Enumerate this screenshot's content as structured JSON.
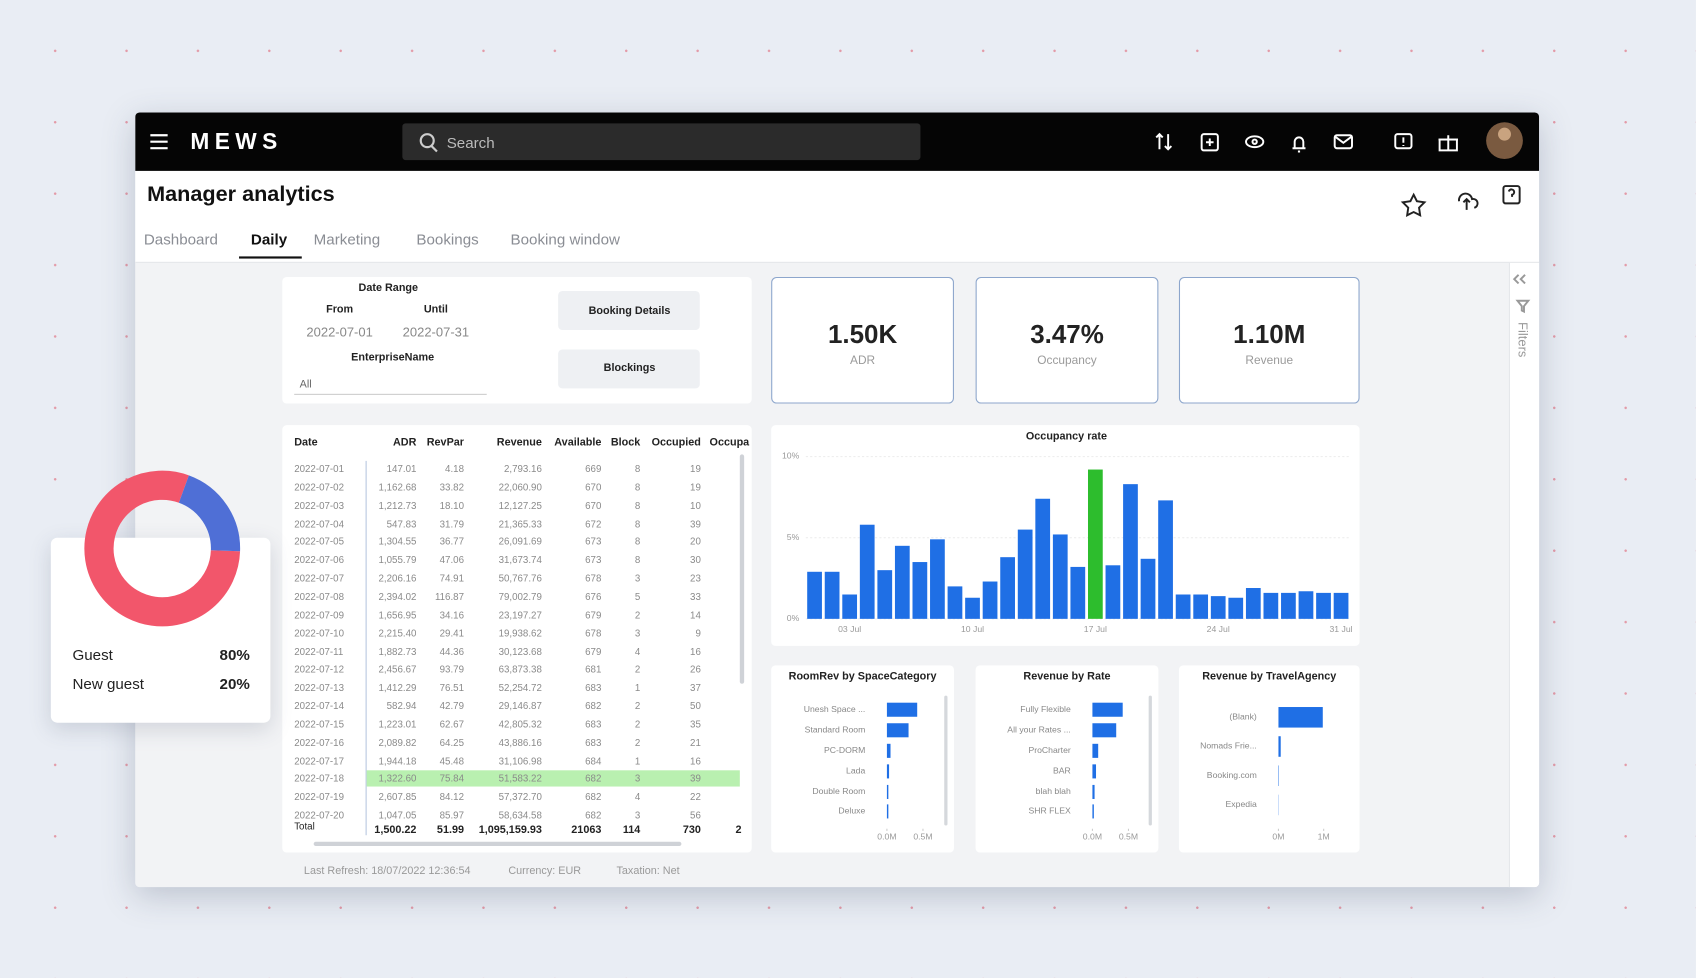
{
  "nav": {
    "brand": "MEWS",
    "search_placeholder": "Search"
  },
  "page": {
    "title": "Manager analytics",
    "tabs": [
      "Dashboard",
      "Daily",
      "Marketing",
      "Bookings",
      "Booking window"
    ],
    "active_tab": 1,
    "filters_label": "Filters"
  },
  "filters": {
    "date_range_label": "Date Range",
    "from_label": "From",
    "until_label": "Until",
    "from": "2022-07-01",
    "until": "2022-07-31",
    "enterprise_label": "EnterpriseName",
    "enterprise_value": "All",
    "buttons": [
      "Booking Details",
      "Blockings"
    ]
  },
  "kpis": [
    {
      "value": "1.50K",
      "label": "ADR"
    },
    {
      "value": "3.47%",
      "label": "Occupancy"
    },
    {
      "value": "1.10M",
      "label": "Revenue"
    }
  ],
  "table": {
    "columns": [
      "Date",
      "ADR",
      "RevPar",
      "Revenue",
      "Available",
      "Block",
      "Occupied",
      "Occupa"
    ],
    "rows": [
      [
        "2022-07-01",
        "147.01",
        "4.18",
        "2,793.16",
        "669",
        "8",
        "19"
      ],
      [
        "2022-07-02",
        "1,162.68",
        "33.82",
        "22,060.90",
        "670",
        "8",
        "19"
      ],
      [
        "2022-07-03",
        "1,212.73",
        "18.10",
        "12,127.25",
        "670",
        "8",
        "10"
      ],
      [
        "2022-07-04",
        "547.83",
        "31.79",
        "21,365.33",
        "672",
        "8",
        "39"
      ],
      [
        "2022-07-05",
        "1,304.55",
        "36.77",
        "26,091.69",
        "673",
        "8",
        "20"
      ],
      [
        "2022-07-06",
        "1,055.79",
        "47.06",
        "31,673.74",
        "673",
        "8",
        "30"
      ],
      [
        "2022-07-07",
        "2,206.16",
        "74.91",
        "50,767.76",
        "678",
        "3",
        "23"
      ],
      [
        "2022-07-08",
        "2,394.02",
        "116.87",
        "79,002.79",
        "676",
        "5",
        "33"
      ],
      [
        "2022-07-09",
        "1,656.95",
        "34.16",
        "23,197.27",
        "679",
        "2",
        "14"
      ],
      [
        "2022-07-10",
        "2,215.40",
        "29.41",
        "19,938.62",
        "678",
        "3",
        "9"
      ],
      [
        "2022-07-11",
        "1,882.73",
        "44.36",
        "30,123.68",
        "679",
        "4",
        "16"
      ],
      [
        "2022-07-12",
        "2,456.67",
        "93.79",
        "63,873.38",
        "681",
        "2",
        "26"
      ],
      [
        "2022-07-13",
        "1,412.29",
        "76.51",
        "52,254.72",
        "683",
        "1",
        "37"
      ],
      [
        "2022-07-14",
        "582.94",
        "42.79",
        "29,146.87",
        "682",
        "2",
        "50"
      ],
      [
        "2022-07-15",
        "1,223.01",
        "62.67",
        "42,805.32",
        "683",
        "2",
        "35"
      ],
      [
        "2022-07-16",
        "2,089.82",
        "64.25",
        "43,886.16",
        "683",
        "2",
        "21"
      ],
      [
        "2022-07-17",
        "1,944.18",
        "45.48",
        "31,106.98",
        "684",
        "1",
        "16"
      ],
      [
        "2022-07-18",
        "1,322.60",
        "75.84",
        "51,583.22",
        "682",
        "3",
        "39"
      ],
      [
        "2022-07-19",
        "2,607.85",
        "84.12",
        "57,372.70",
        "682",
        "4",
        "22"
      ],
      [
        "2022-07-20",
        "1,047.05",
        "85.97",
        "58,634.58",
        "682",
        "3",
        "56"
      ]
    ],
    "highlight_row": 17,
    "total": [
      "Total",
      "1,500.22",
      "51.99",
      "1,095,159.93",
      "21063",
      "114",
      "730",
      "2"
    ]
  },
  "footer": [
    "Last Refresh: 18/07/2022 12:36:54",
    "Currency: EUR",
    "Taxation: Net"
  ],
  "occupancy_chart": {
    "type": "bar",
    "title": "Occupancy rate",
    "categories": [
      null,
      null,
      "03 Jul",
      null,
      null,
      null,
      null,
      null,
      null,
      "10 Jul",
      null,
      null,
      null,
      null,
      null,
      null,
      "17 Jul",
      null,
      null,
      null,
      null,
      null,
      null,
      "24 Jul",
      null,
      null,
      null,
      null,
      null,
      null,
      "31 Jul"
    ],
    "values": [
      2.9,
      2.9,
      1.5,
      5.8,
      3.0,
      4.5,
      3.5,
      4.9,
      2.0,
      1.3,
      2.3,
      3.8,
      5.5,
      7.4,
      5.2,
      3.2,
      9.2,
      3.3,
      8.3,
      3.7,
      7.3,
      1.5,
      1.5,
      1.4,
      1.3,
      1.9,
      1.6,
      1.6,
      1.7,
      1.6,
      1.6
    ],
    "color": "#1f6fe5",
    "highlight": {
      "index": 16,
      "color": "#2dbd2d"
    },
    "ylim": [
      0,
      10
    ],
    "yticks": [
      {
        "value": 0,
        "label": "0%"
      },
      {
        "value": 5,
        "label": "5%"
      },
      {
        "value": 10,
        "label": "10%"
      }
    ]
  },
  "small_charts": [
    {
      "type": "hbar",
      "title": "RoomRev by SpaceCategory",
      "categories": [
        "Unesh Space ...",
        "Standard Room",
        "PC-DORM",
        "Lada",
        "Double Room",
        "Deluxe"
      ],
      "values": [
        0.42,
        0.3,
        0.05,
        0.03,
        0.02,
        0.02
      ],
      "color": "#1f6fe5",
      "xlim": [
        0,
        0.6
      ],
      "xticks": [
        {
          "value": 0,
          "label": "0.0M"
        },
        {
          "value": 0.5,
          "label": "0.5M"
        }
      ]
    },
    {
      "type": "hbar",
      "title": "Revenue by Rate",
      "categories": [
        "Fully Flexible",
        "All your Rates ...",
        "ProCharter",
        "BAR",
        "blah blah",
        "SHR FLEX"
      ],
      "values": [
        0.42,
        0.33,
        0.08,
        0.05,
        0.03,
        0.02
      ],
      "color": "#1f6fe5",
      "xlim": [
        0,
        0.6
      ],
      "xticks": [
        {
          "value": 0,
          "label": "0.0M"
        },
        {
          "value": 0.5,
          "label": "0.5M"
        }
      ]
    },
    {
      "type": "hbar",
      "title": "Revenue by TravelAgency",
      "categories": [
        "(Blank)",
        "Nomads Frie...",
        "Booking.com",
        "Expedia"
      ],
      "values": [
        0.98,
        0.05,
        0.01,
        0.005
      ],
      "color": "#1f6fe5",
      "xlim": [
        0,
        1.1
      ],
      "xticks": [
        {
          "value": 0,
          "label": "0M"
        },
        {
          "value": 1,
          "label": "1M"
        }
      ]
    }
  ],
  "donut": {
    "type": "pie",
    "names": [
      "Guest",
      "New guest"
    ],
    "values": [
      80,
      20
    ],
    "value_labels": [
      "80%",
      "20%"
    ],
    "colors": [
      "#f2566b",
      "#4f6fd6"
    ]
  }
}
